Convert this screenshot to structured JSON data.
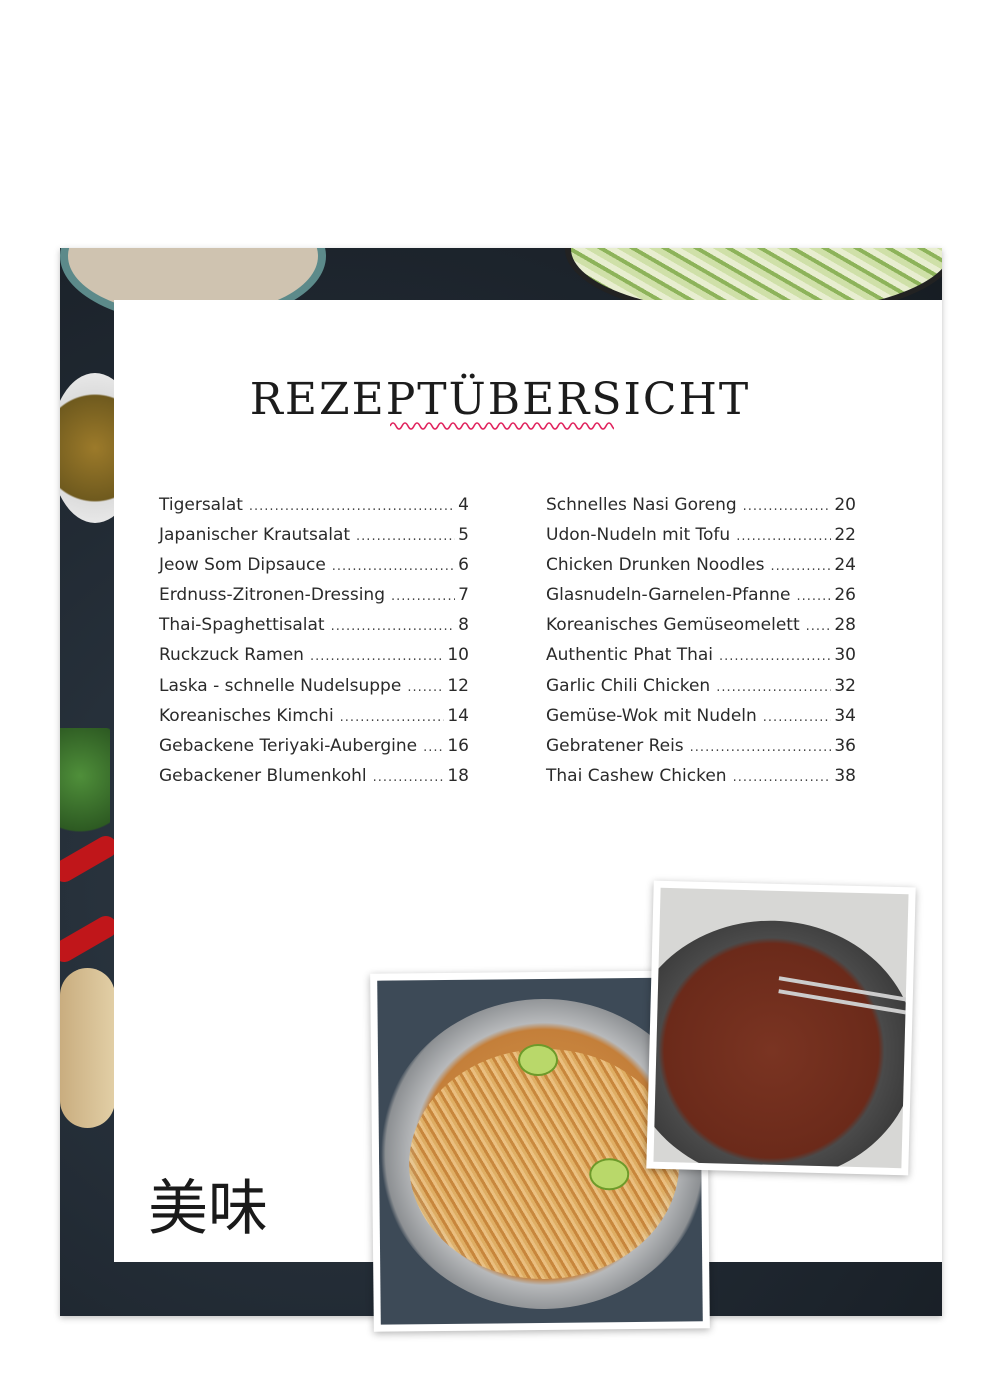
{
  "title": "REZEPTÜBERSICHT",
  "accent_color": "#e0245e",
  "toc": {
    "left": [
      {
        "name": "Tigersalat",
        "page": "4"
      },
      {
        "name": "Japanischer Krautsalat",
        "page": "5"
      },
      {
        "name": "Jeow Som Dipsauce",
        "page": "6"
      },
      {
        "name": "Erdnuss-Zitronen-Dressing",
        "page": "7"
      },
      {
        "name": "Thai-Spaghettisalat",
        "page": "8"
      },
      {
        "name": "Ruckzuck Ramen",
        "page": "10"
      },
      {
        "name": "Laska - schnelle Nudelsuppe",
        "page": "12"
      },
      {
        "name": "Koreanisches Kimchi",
        "page": "14"
      },
      {
        "name": "Gebackene Teriyaki-Aubergine",
        "page": "16"
      },
      {
        "name": "Gebackener Blumenkohl",
        "page": "18"
      }
    ],
    "right": [
      {
        "name": "Schnelles Nasi Goreng",
        "page": "20"
      },
      {
        "name": "Udon-Nudeln mit Tofu",
        "page": "22"
      },
      {
        "name": "Chicken Drunken Noodles",
        "page": "24"
      },
      {
        "name": "Glasnudeln-Garnelen-Pfanne",
        "page": "26"
      },
      {
        "name": "Koreanisches Gemüseomelett",
        "page": "28"
      },
      {
        "name": "Authentic Phat Thai",
        "page": "30"
      },
      {
        "name": "Garlic Chili Chicken",
        "page": "32"
      },
      {
        "name": "Gemüse-Wok mit Nudeln",
        "page": "34"
      },
      {
        "name": "Gebratener Reis",
        "page": "36"
      },
      {
        "name": "Thai Cashew Chicken",
        "page": "38"
      }
    ]
  },
  "kanji": "美味"
}
